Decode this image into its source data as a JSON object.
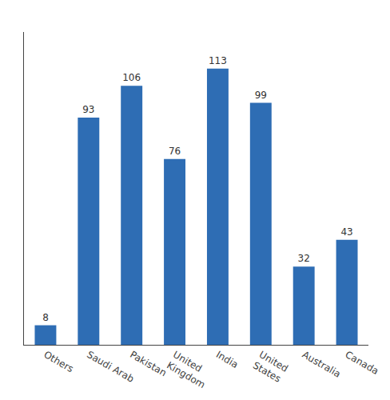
{
  "chart_data": {
    "type": "bar",
    "categories": [
      "Others",
      "Saudi Arab",
      "Pakistan",
      "United\nKingdom",
      "India",
      "United\nStates",
      "Australia",
      "Canada"
    ],
    "values": [
      8,
      93,
      106,
      76,
      113,
      99,
      32,
      43
    ],
    "color": "#2E6DB4",
    "ylim": [
      0,
      128
    ],
    "grid": false,
    "data_labels": true,
    "tick_labels": "x"
  }
}
